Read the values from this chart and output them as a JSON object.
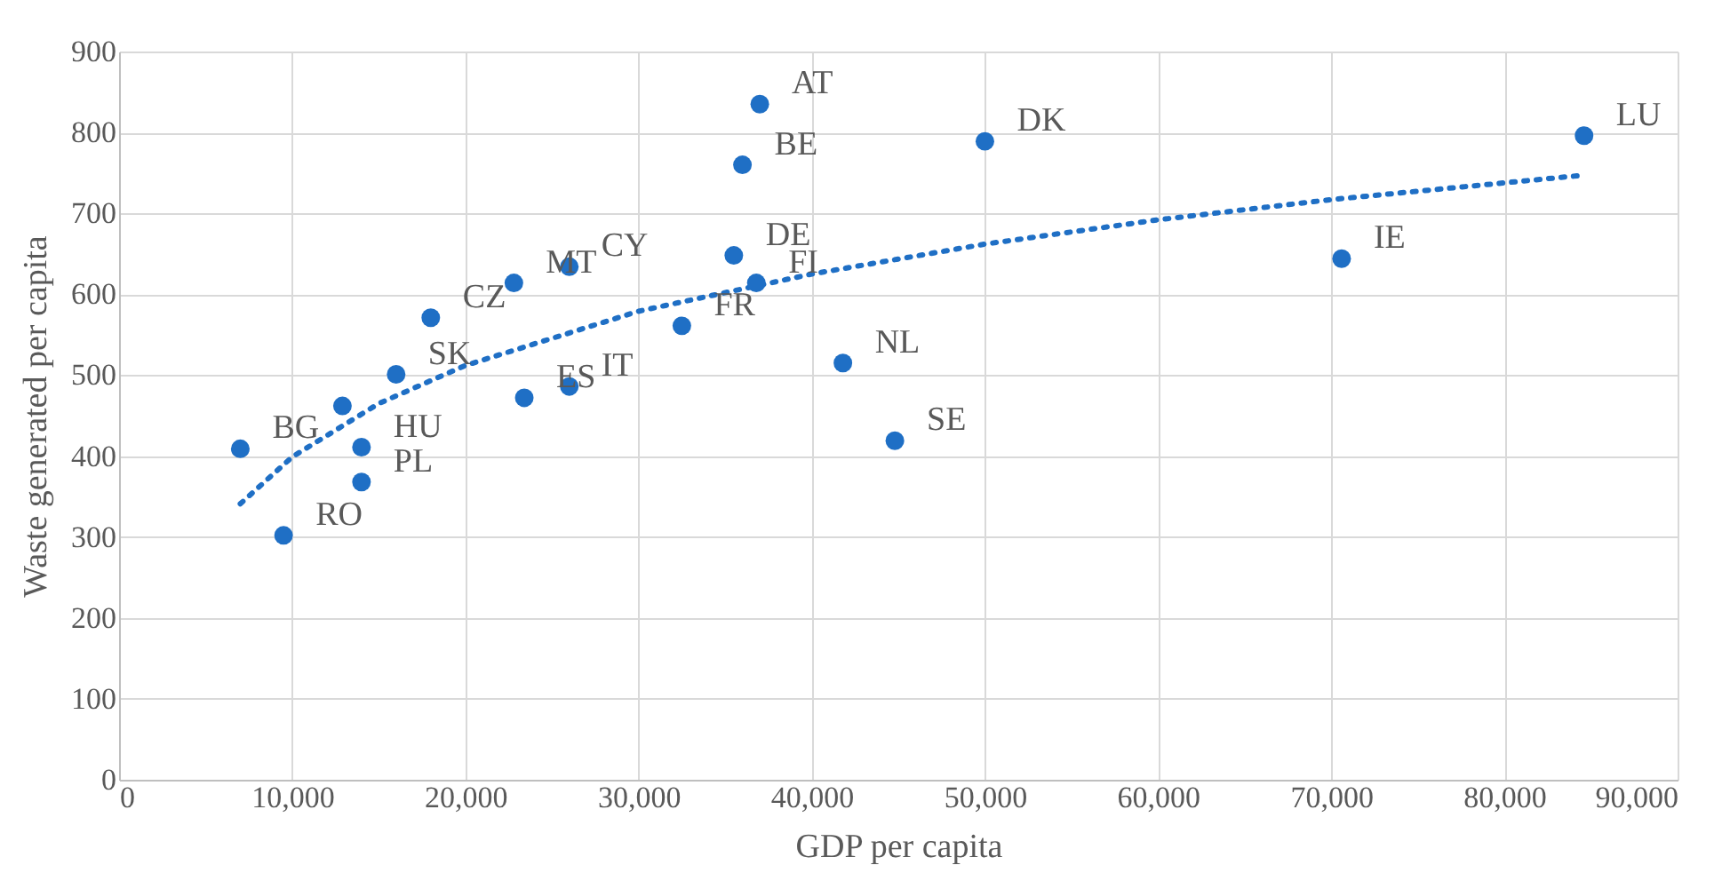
{
  "chart_data": {
    "type": "scatter",
    "xlabel": "GDP per capita",
    "ylabel": "Waste generated per capita",
    "xlim": [
      0,
      90000
    ],
    "ylim": [
      0,
      900
    ],
    "xticks": [
      0,
      {
        "value": 10000,
        "label": "10,000"
      },
      {
        "value": 20000,
        "label": "20,000"
      },
      {
        "value": 30000,
        "label": "30,000"
      },
      {
        "value": 40000,
        "label": "40,000"
      },
      {
        "value": 50000,
        "label": "50,000"
      },
      {
        "value": 60000,
        "label": "60,000"
      },
      {
        "value": 70000,
        "label": "70,000"
      },
      {
        "value": 80000,
        "label": "80,000"
      },
      {
        "value": 90000,
        "label": "90,000"
      }
    ],
    "yticks": [
      0,
      100,
      200,
      300,
      400,
      500,
      600,
      700,
      800,
      900
    ],
    "grid": true,
    "legend": false,
    "marker": "circle",
    "series": [
      {
        "type": "scatter",
        "color": "#1f6fc5",
        "x": [
          37000,
          36000,
          50000,
          84600,
          35500,
          70600,
          32500,
          41800,
          44800,
          22800,
          26000,
          18000,
          36800,
          7000,
          9500,
          14000,
          14000,
          12900,
          16000,
          23400,
          26000
        ],
        "values": [
          835,
          760,
          789,
          796,
          648,
          644,
          561,
          515,
          419,
          614,
          634,
          571,
          614,
          409,
          302,
          368,
          411,
          462,
          501,
          472,
          486
        ],
        "value_labels": [
          "AT",
          "BE",
          "DK",
          "LU",
          "DE",
          "IE",
          "FR",
          "NL",
          "SE",
          "MT",
          "CY",
          "CZ",
          "FI",
          "BG",
          "RO",
          "PL",
          "HU",
          null,
          "SK",
          "ES",
          "IT"
        ]
      },
      {
        "type": "line",
        "color": "#1f6fc5",
        "line_style": "dotted",
        "marker": "none",
        "x": [
          7000,
          10000,
          15000,
          20000,
          30000,
          40000,
          50000,
          60000,
          70000,
          84500
        ],
        "values": [
          341,
          399,
          465,
          512,
          579,
          625,
          662,
          692,
          717,
          747
        ]
      }
    ]
  }
}
